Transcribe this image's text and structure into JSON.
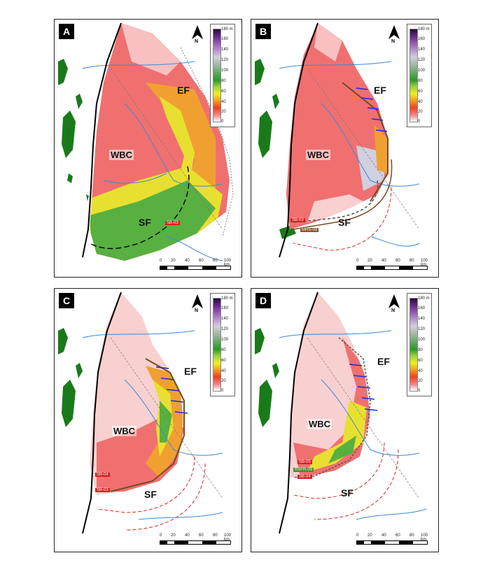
{
  "panels": [
    {
      "letter": "A",
      "legend_unit": "180 m",
      "region_labels": {
        "wbc": "WBC",
        "ef": "EF",
        "sf": "SF"
      },
      "tags": [
        "SB-03"
      ]
    },
    {
      "letter": "B",
      "legend_unit": "180 m",
      "region_labels": {
        "wbc": "WBC",
        "ef": "EF",
        "sf": "SF"
      },
      "tags": [
        "SB-03",
        "MRS-03"
      ]
    },
    {
      "letter": "C",
      "legend_unit": "180 m",
      "region_labels": {
        "wbc": "WBC",
        "ef": "EF",
        "sf": "SF"
      },
      "tags": [
        "SB-04",
        "SB-03"
      ]
    },
    {
      "letter": "D",
      "legend_unit": "180 m",
      "region_labels": {
        "wbc": "WBC",
        "ef": "EF",
        "sf": "SF"
      },
      "tags": [
        "SB-05",
        "RSFR-03",
        "SB-04"
      ]
    }
  ],
  "legend_ticks": [
    "160",
    "140",
    "120",
    "100",
    "80",
    "60",
    "40",
    "20",
    "0"
  ],
  "scale": {
    "labels": [
      "0",
      "20",
      "40",
      "60",
      "80",
      "100 km"
    ]
  },
  "north_label": "N",
  "colors": {
    "depth_light": "#f8d0d0",
    "depth_low": "#f07070",
    "depth_mid": "#f0a030",
    "depth_yellow": "#e8e030",
    "depth_green": "#58b040",
    "river": "#3a8ad8",
    "forest": "#1a7a1a",
    "thrust": "#000000",
    "front_red": "#e02020",
    "front_brown": "#7a4a20",
    "arrows": "#1a2ae0"
  }
}
